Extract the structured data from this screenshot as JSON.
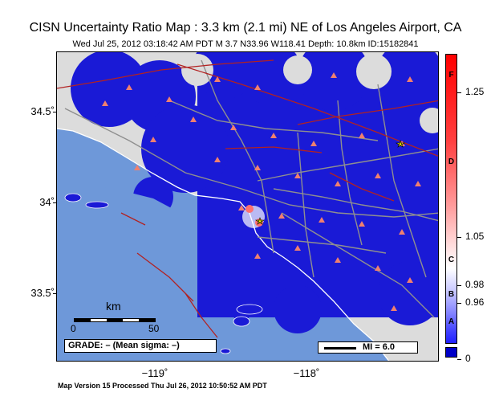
{
  "header": {
    "title": "CISN Uncertainty Ratio Map : 3.3 km (2.1 mi) NE of Los Angeles Airport, CA",
    "subtitle": "Wed Jul 25, 2012 03:18:42 AM PDT    M 3.7    N33.96 W118.41    Depth: 10.8km    ID:15182841"
  },
  "map": {
    "lat_labels": [
      "34.5˚",
      "34˚",
      "33.5˚"
    ],
    "lon_labels": [
      "−119˚",
      "−118˚"
    ],
    "colors": {
      "ocean": "#6e98d9",
      "land": "#dcdcdc",
      "uncertainty_blue": "#1a1ad6",
      "fault": "#b22222",
      "road": "#8f8f8f",
      "station": "#f0806f",
      "epicenter": "#ffff00",
      "colorbar_min": "#0000c8"
    },
    "scale_bar": {
      "unit": "km",
      "min_label": "0",
      "max_label": "50"
    },
    "grade_box": "GRADE: – (Mean sigma: –)",
    "legend_mi": "MI = 6.0",
    "station_symbol": "triangle-icon",
    "epicenter_symbol": "star-icon"
  },
  "colorbar": {
    "grades": [
      "F",
      "D",
      "C",
      "B",
      "A"
    ],
    "ticks": [
      "1.25",
      "1.05",
      "0.98",
      "0.96",
      "0"
    ]
  },
  "footer": {
    "processed": "Map Version 15 Processed Thu Jul 26, 2012 10:50:52 AM PDT"
  }
}
